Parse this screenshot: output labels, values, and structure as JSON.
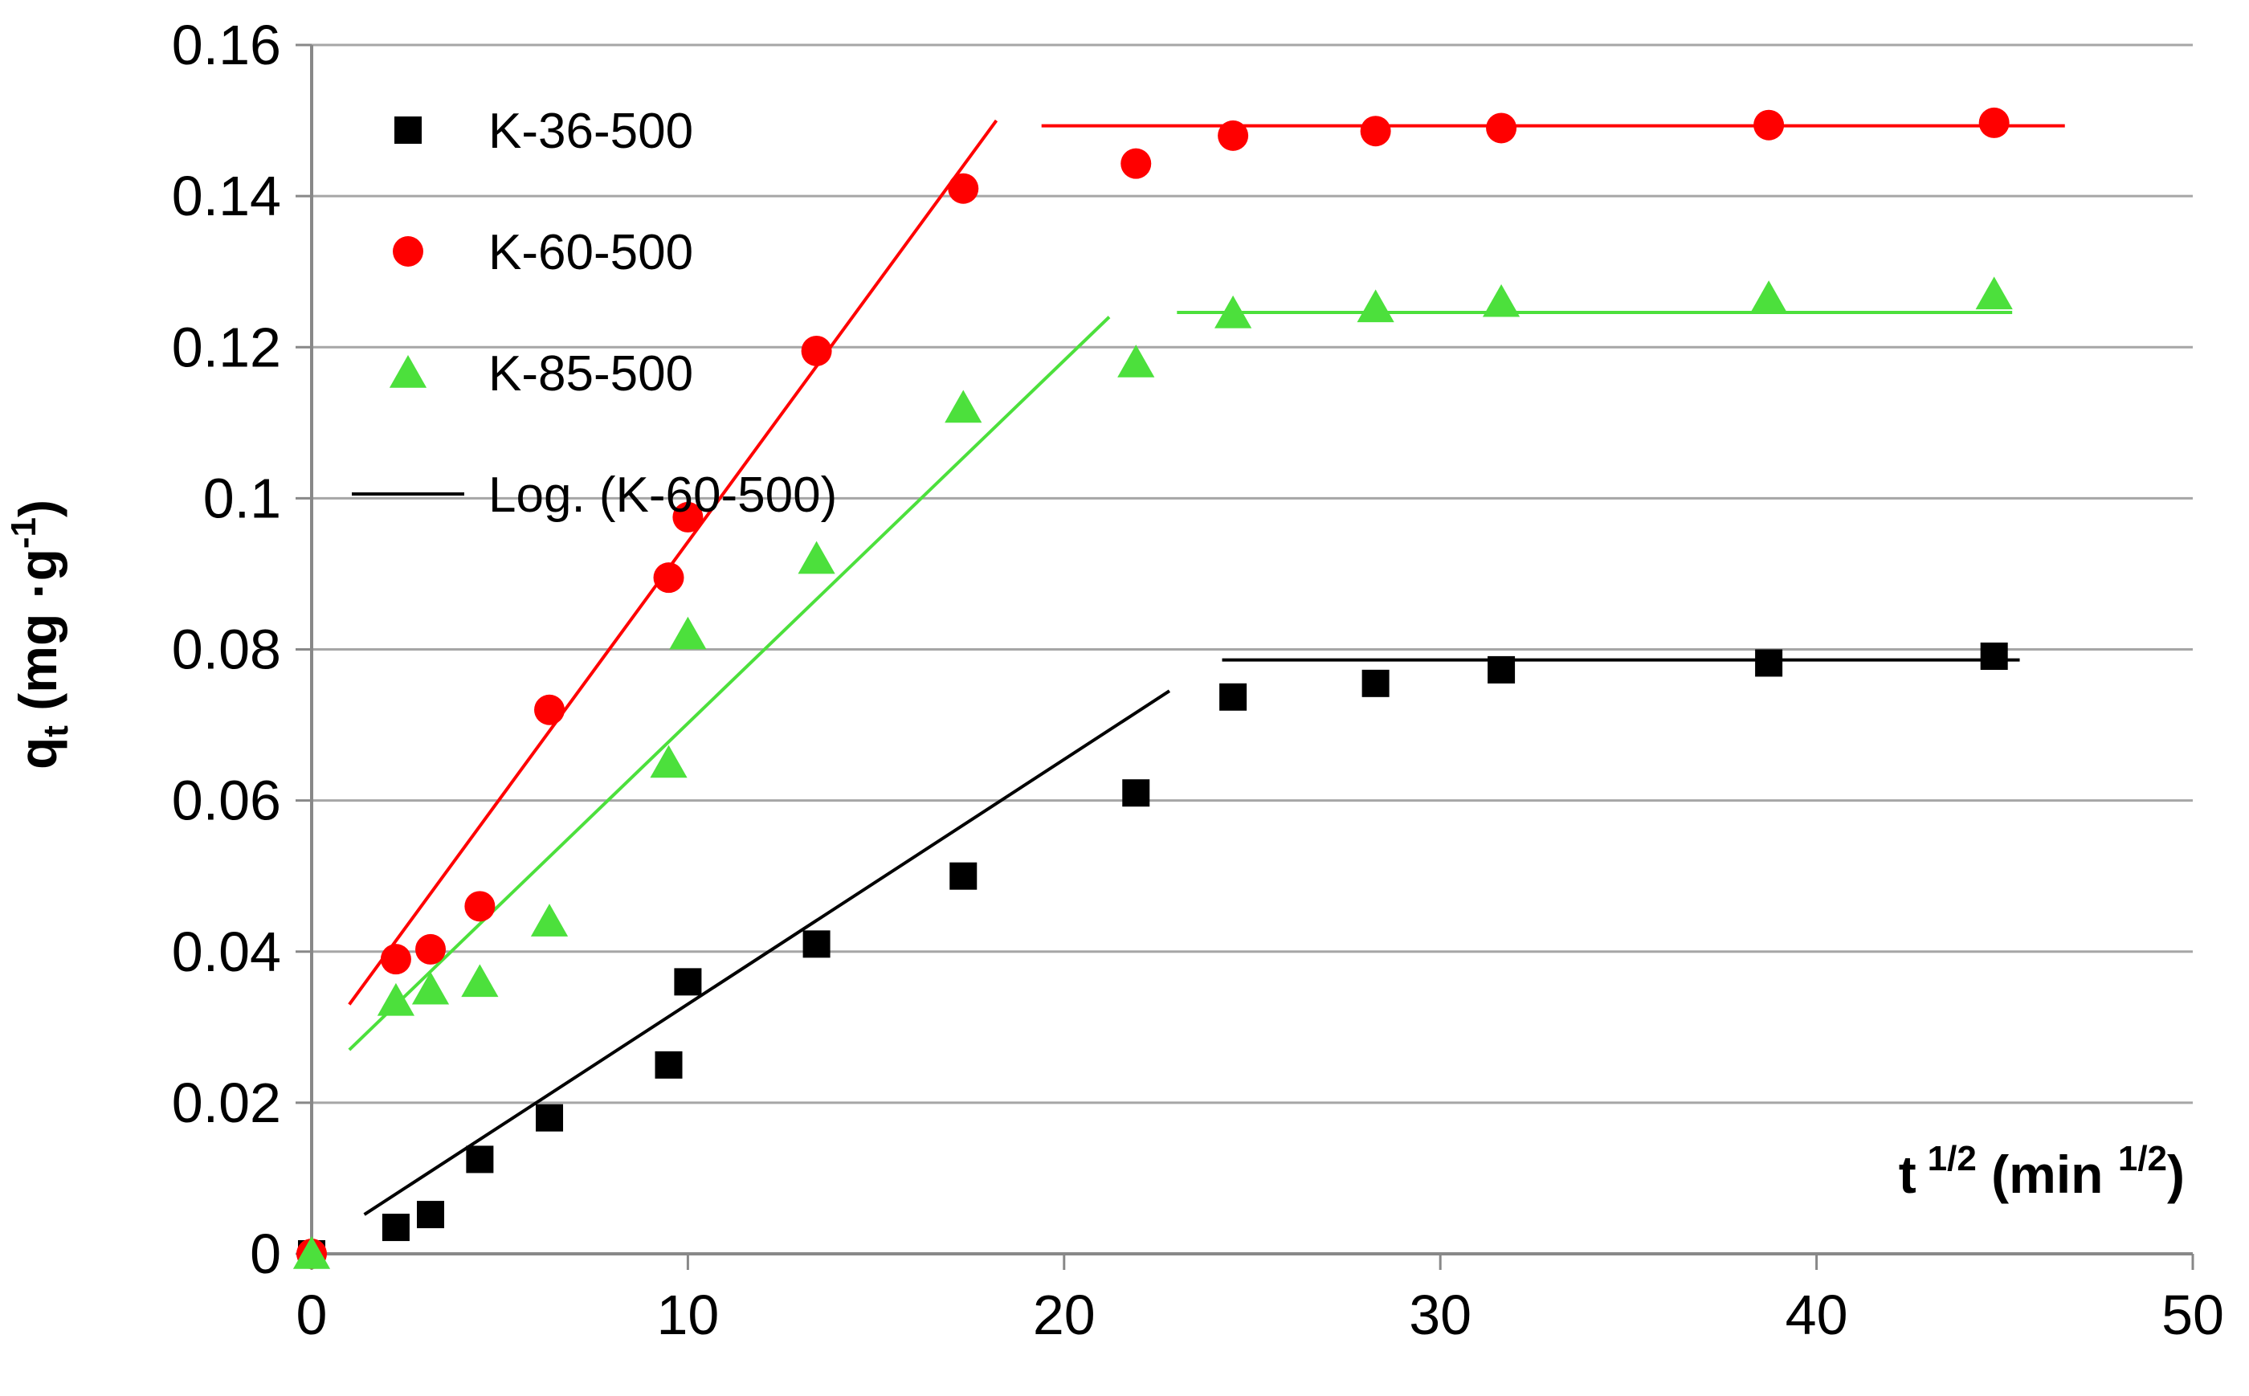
{
  "chart_data": {
    "type": "scatter",
    "title": "",
    "xlabel": {
      "base": "t",
      "sup": "1/2",
      "unit_open": " (min ",
      "unit_sup": "1/2",
      "unit_close": ")"
    },
    "ylabel": {
      "base": "q",
      "sub": "t",
      "unit": " (mg ·g",
      "unit_sup": "-1",
      "close": ")"
    },
    "xlim": [
      0,
      50
    ],
    "ylim": [
      0,
      0.16
    ],
    "xticks": [
      0,
      10,
      20,
      30,
      40,
      50
    ],
    "xtick_labels": [
      "0",
      "10",
      "20",
      "30",
      "40",
      "50"
    ],
    "yticks": [
      0,
      0.02,
      0.04,
      0.06,
      0.08,
      0.1,
      0.12,
      0.14,
      0.16
    ],
    "ytick_labels": [
      "0",
      "0.02",
      "0.04",
      "0.06",
      "0.08",
      "0.1",
      "0.12",
      "0.14",
      "0.16"
    ],
    "grid": "horizontal",
    "legend_position": "top-left",
    "series": [
      {
        "name": "K-36-500",
        "marker": "square",
        "color": "#000000",
        "x": [
          0,
          2.24,
          3.16,
          4.47,
          6.32,
          9.49,
          10.0,
          13.42,
          17.32,
          21.91,
          24.49,
          28.28,
          31.62,
          38.73,
          44.72
        ],
        "y": [
          0,
          0.0035,
          0.0052,
          0.0125,
          0.018,
          0.025,
          0.036,
          0.041,
          0.05,
          0.061,
          0.0737,
          0.0755,
          0.0773,
          0.0782,
          0.0791
        ]
      },
      {
        "name": "K-60-500",
        "marker": "circle",
        "color": "#FF0000",
        "x": [
          0,
          2.24,
          3.16,
          4.47,
          6.32,
          9.49,
          10.0,
          13.42,
          17.32,
          21.91,
          24.49,
          28.28,
          31.62,
          38.73,
          44.72
        ],
        "y": [
          0,
          0.039,
          0.0403,
          0.046,
          0.072,
          0.0895,
          0.0975,
          0.1195,
          0.141,
          0.1443,
          0.148,
          0.1486,
          0.149,
          0.1494,
          0.1497
        ]
      },
      {
        "name": "K-85-500",
        "marker": "triangle",
        "color": "#4CE03C",
        "x": [
          0,
          2.24,
          3.16,
          4.47,
          6.32,
          9.49,
          10.0,
          13.42,
          17.32,
          21.91,
          24.49,
          28.28,
          31.62,
          38.73,
          44.72
        ],
        "y": [
          0,
          0.0335,
          0.035,
          0.036,
          0.044,
          0.065,
          0.082,
          0.092,
          0.112,
          0.118,
          0.1245,
          0.1253,
          0.126,
          0.1265,
          0.127
        ]
      }
    ],
    "fit_lines": [
      {
        "series": "K-36-500",
        "color": "#000000",
        "x": [
          1.4,
          22.8
        ],
        "y": [
          0.0052,
          0.0745
        ]
      },
      {
        "series": "K-36-500",
        "color": "#000000",
        "x": [
          24.2,
          45.4
        ],
        "y": [
          0.0786,
          0.0786
        ]
      },
      {
        "series": "K-60-500",
        "color": "#FF0000",
        "x": [
          1.0,
          18.2
        ],
        "y": [
          0.033,
          0.15
        ]
      },
      {
        "series": "K-60-500",
        "color": "#FF0000",
        "x": [
          19.4,
          46.6
        ],
        "y": [
          0.1493,
          0.1493
        ]
      },
      {
        "series": "K-85-500",
        "color": "#4CE03C",
        "x": [
          1.0,
          21.2
        ],
        "y": [
          0.027,
          0.124
        ]
      },
      {
        "series": "K-85-500",
        "color": "#4CE03C",
        "x": [
          23.0,
          45.2
        ],
        "y": [
          0.1246,
          0.1246
        ]
      }
    ],
    "legend": [
      {
        "label": "K-36-500",
        "marker": "square",
        "color": "#000000"
      },
      {
        "label": "K-60-500",
        "marker": "circle",
        "color": "#FF0000"
      },
      {
        "label": "K-85-500",
        "marker": "triangle",
        "color": "#4CE03C"
      },
      {
        "label": "Log. (K-60-500)",
        "marker": "line",
        "color": "#000000"
      }
    ]
  }
}
